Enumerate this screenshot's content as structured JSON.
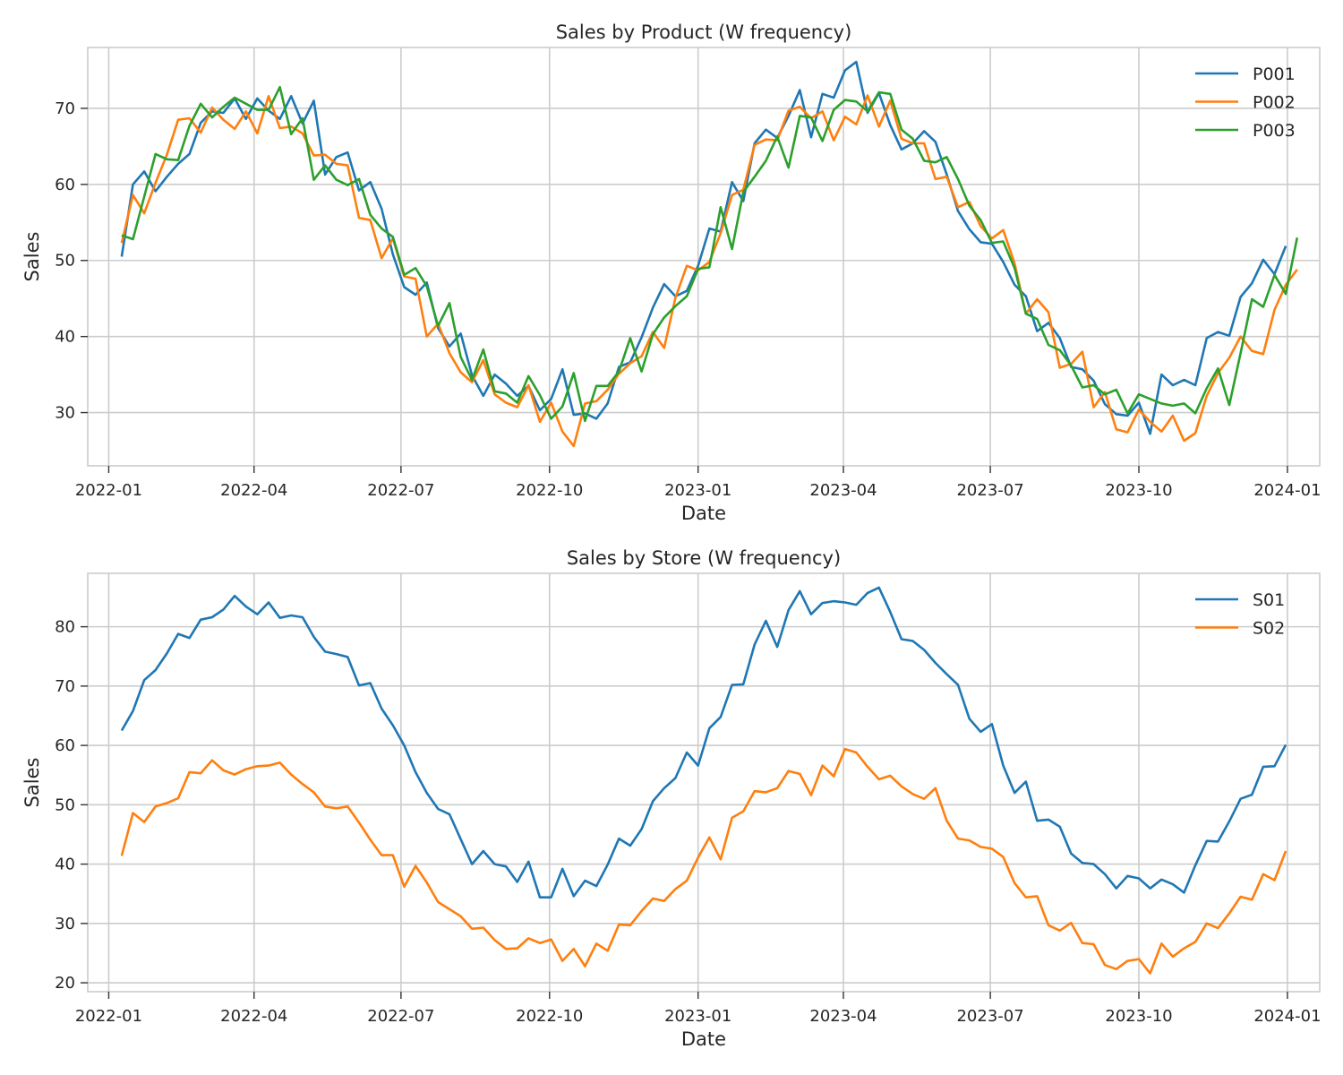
{
  "chart_data": [
    {
      "type": "line",
      "title": "Sales by Product (W frequency)",
      "xlabel": "Date",
      "ylabel": "Sales",
      "x_start": "2022-01-09",
      "x_step_days": 7,
      "xlim": [
        "2021-12-19",
        "2024-01-21"
      ],
      "ylim": [
        23,
        78
      ],
      "xticks": [
        "2022-01",
        "2022-04",
        "2022-07",
        "2022-10",
        "2023-01",
        "2023-04",
        "2023-07",
        "2023-10",
        "2024-01"
      ],
      "xtick_dates": [
        "2022-01-01",
        "2022-04-01",
        "2022-07-01",
        "2022-10-01",
        "2023-01-01",
        "2023-04-01",
        "2023-07-01",
        "2023-10-01",
        "2024-01-01"
      ],
      "yticks": [
        30,
        40,
        50,
        60,
        70
      ],
      "grid": true,
      "legend_position": "top-right",
      "series": [
        {
          "name": "P001",
          "color": "#1f77b4",
          "values": [
            50.5,
            60.0,
            61.7,
            59.1,
            61.0,
            62.7,
            64.0,
            68.1,
            69.6,
            69.4,
            71.3,
            68.6,
            71.3,
            69.7,
            68.6,
            71.6,
            68.0,
            71.0,
            61.3,
            63.6,
            64.2,
            59.2,
            60.3,
            56.8,
            50.8,
            46.5,
            45.5,
            47.1,
            41.1,
            38.7,
            40.4,
            34.9,
            32.2,
            35.0,
            33.8,
            32.2,
            33.5,
            30.3,
            31.8,
            35.7,
            29.7,
            29.9,
            29.2,
            31.2,
            36.0,
            36.6,
            39.9,
            43.8,
            46.9,
            45.3,
            46.0,
            49.3,
            54.2,
            53.8,
            60.3,
            57.8,
            65.4,
            67.2,
            66.1,
            69.0,
            72.4,
            66.2,
            71.9,
            71.4,
            75.0,
            76.1,
            69.4,
            72.0,
            67.8,
            64.6,
            65.4,
            67.0,
            65.6,
            61.3,
            56.5,
            54.1,
            52.4,
            52.2,
            49.8,
            46.8,
            45.3,
            40.7,
            41.8,
            39.8,
            36.0,
            35.7,
            34.2,
            31.1,
            29.8,
            29.6,
            31.3,
            27.2,
            35.0,
            33.6,
            34.3,
            33.6,
            39.8,
            40.6,
            40.1,
            45.2,
            47.0,
            50.1,
            48.2,
            51.9
          ]
        },
        {
          "name": "P002",
          "color": "#ff7f0e",
          "values": [
            52.3,
            58.6,
            56.2,
            60.2,
            63.9,
            68.5,
            68.7,
            66.8,
            70.1,
            68.5,
            67.3,
            69.6,
            66.7,
            71.6,
            67.4,
            67.6,
            66.7,
            63.8,
            63.9,
            62.7,
            62.5,
            55.6,
            55.3,
            50.3,
            52.9,
            47.9,
            47.6,
            40.0,
            41.7,
            37.8,
            35.3,
            34.0,
            36.9,
            32.4,
            31.3,
            30.7,
            33.6,
            28.8,
            31.3,
            27.5,
            25.6,
            31.2,
            31.5,
            33.0,
            35.1,
            36.5,
            37.4,
            40.6,
            38.5,
            45.1,
            49.3,
            48.7,
            49.8,
            53.6,
            58.6,
            59.3,
            65.2,
            65.9,
            65.8,
            69.7,
            70.2,
            68.7,
            69.6,
            65.8,
            68.9,
            67.9,
            71.7,
            67.6,
            71.0,
            66.0,
            65.4,
            65.4,
            60.7,
            61.0,
            57.0,
            57.7,
            54.5,
            52.9,
            54.0,
            49.6,
            43.0,
            44.9,
            43.2,
            35.9,
            36.4,
            38.0,
            30.7,
            32.7,
            27.8,
            27.4,
            30.4,
            28.8,
            27.5,
            29.6,
            26.3,
            27.3,
            32.2,
            35.2,
            37.2,
            40.0,
            38.1,
            37.7,
            43.5,
            46.8,
            48.8
          ]
        },
        {
          "name": "P003",
          "color": "#2ca02c",
          "values": [
            53.3,
            52.8,
            58.4,
            64.0,
            63.3,
            63.2,
            67.7,
            70.6,
            68.8,
            70.2,
            71.4,
            70.6,
            69.8,
            69.8,
            72.8,
            66.6,
            68.7,
            60.6,
            62.5,
            60.6,
            59.9,
            60.7,
            56.0,
            54.2,
            53.1,
            48.1,
            49.0,
            46.6,
            41.4,
            44.4,
            37.3,
            34.3,
            38.3,
            32.8,
            32.5,
            31.3,
            34.8,
            32.3,
            29.2,
            30.8,
            35.2,
            28.9,
            33.5,
            33.5,
            35.4,
            39.8,
            35.4,
            40.3,
            42.5,
            44.0,
            45.3,
            48.9,
            49.1,
            57.0,
            51.5,
            59.0,
            61.0,
            63.1,
            66.3,
            62.2,
            69.0,
            68.8,
            65.7,
            69.8,
            71.1,
            70.9,
            69.6,
            72.1,
            71.9,
            67.2,
            66.0,
            63.1,
            62.9,
            63.6,
            60.7,
            57.2,
            55.3,
            52.3,
            52.5,
            49.0,
            43.0,
            42.3,
            38.9,
            38.2,
            36.2,
            33.3,
            33.6,
            32.4,
            33.0,
            29.9,
            32.4,
            31.8,
            31.2,
            30.9,
            31.2,
            29.9,
            33.2,
            35.8,
            31.0,
            37.8,
            44.9,
            43.9,
            48.1,
            45.6,
            53.0
          ]
        }
      ]
    },
    {
      "type": "line",
      "title": "Sales by Store (W frequency)",
      "xlabel": "Date",
      "ylabel": "Sales",
      "x_start": "2022-01-09",
      "x_step_days": 7,
      "xlim": [
        "2021-12-19",
        "2024-01-21"
      ],
      "ylim": [
        18.5,
        89
      ],
      "xticks": [
        "2022-01",
        "2022-04",
        "2022-07",
        "2022-10",
        "2023-01",
        "2023-04",
        "2023-07",
        "2023-10",
        "2024-01"
      ],
      "xtick_dates": [
        "2022-01-01",
        "2022-04-01",
        "2022-07-01",
        "2022-10-01",
        "2023-01-01",
        "2023-04-01",
        "2023-07-01",
        "2023-10-01",
        "2024-01-01"
      ],
      "yticks": [
        20,
        30,
        40,
        50,
        60,
        70,
        80
      ],
      "grid": true,
      "legend_position": "top-right",
      "series": [
        {
          "name": "S01",
          "color": "#1f77b4",
          "values": [
            62.5,
            65.8,
            71.0,
            72.7,
            75.5,
            78.8,
            78.1,
            81.2,
            81.6,
            82.9,
            85.2,
            83.4,
            82.1,
            84.1,
            81.5,
            81.9,
            81.6,
            78.3,
            75.8,
            75.4,
            74.9,
            70.1,
            70.5,
            66.2,
            63.4,
            60.0,
            55.5,
            52.0,
            49.3,
            48.4,
            44.2,
            40.0,
            42.2,
            40.0,
            39.6,
            37.0,
            40.4,
            34.4,
            34.4,
            39.2,
            34.6,
            37.2,
            36.3,
            39.9,
            44.3,
            43.1,
            45.9,
            50.6,
            52.8,
            54.5,
            58.8,
            56.6,
            62.9,
            64.8,
            70.2,
            70.3,
            77.0,
            81.0,
            76.6,
            82.8,
            86.0,
            82.1,
            84.0,
            84.3,
            84.1,
            83.7,
            85.7,
            86.6,
            82.5,
            77.9,
            77.6,
            76.1,
            73.9,
            72.0,
            70.2,
            64.5,
            62.3,
            63.6,
            56.6,
            52.0,
            53.9,
            47.3,
            47.5,
            46.3,
            41.8,
            40.2,
            40.0,
            38.3,
            35.9,
            38.0,
            37.6,
            35.9,
            37.4,
            36.6,
            35.2,
            39.8,
            43.9,
            43.8,
            47.2,
            51.0,
            51.7,
            56.4,
            56.5,
            60.1
          ]
        },
        {
          "name": "S02",
          "color": "#ff7f0e",
          "values": [
            41.4,
            48.6,
            47.1,
            49.7,
            50.3,
            51.1,
            55.5,
            55.3,
            57.5,
            55.8,
            55.1,
            56.0,
            56.5,
            56.6,
            57.1,
            55.1,
            53.5,
            52.1,
            49.7,
            49.4,
            49.7,
            47.0,
            44.1,
            41.5,
            41.5,
            36.2,
            39.7,
            36.9,
            33.6,
            32.4,
            31.2,
            29.1,
            29.3,
            27.2,
            25.7,
            25.8,
            27.5,
            26.7,
            27.3,
            23.7,
            25.7,
            22.8,
            26.6,
            25.4,
            29.8,
            29.7,
            32.1,
            34.2,
            33.8,
            35.8,
            37.2,
            41.1,
            44.5,
            40.8,
            47.8,
            48.9,
            52.3,
            52.1,
            52.8,
            55.7,
            55.2,
            51.6,
            56.6,
            54.8,
            59.4,
            58.8,
            56.4,
            54.3,
            54.9,
            53.1,
            51.8,
            51.0,
            52.8,
            47.3,
            44.3,
            44.0,
            42.9,
            42.6,
            41.2,
            36.8,
            34.4,
            34.6,
            29.7,
            28.8,
            30.1,
            26.7,
            26.5,
            23.0,
            22.3,
            23.7,
            24.0,
            21.6,
            26.6,
            24.4,
            25.8,
            26.9,
            30.0,
            29.2,
            31.7,
            34.5,
            34.0,
            38.3,
            37.3,
            42.2
          ]
        }
      ]
    }
  ]
}
